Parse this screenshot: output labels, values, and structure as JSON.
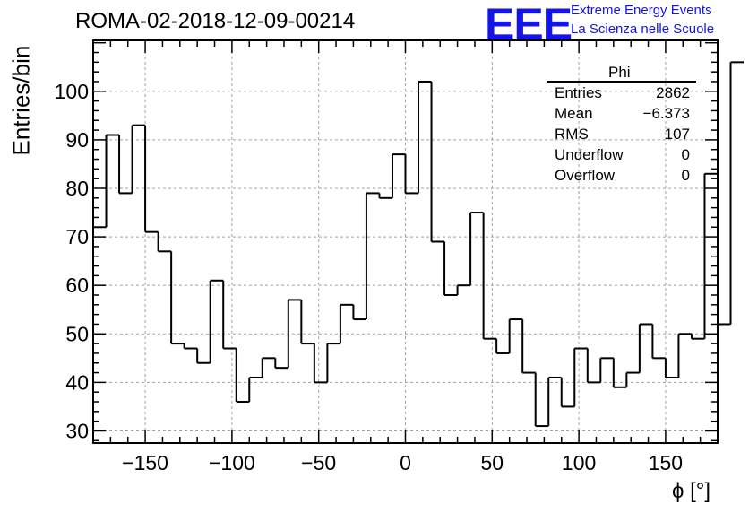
{
  "header": {
    "run_title": "ROMA-02-2018-12-09-00214"
  },
  "logo": {
    "mark": "EEE",
    "line1": "Extreme Energy Events",
    "line2": "La Scienza nelle Scuole",
    "color": "#1414e6"
  },
  "stats_box": {
    "title": "Phi",
    "rows": [
      {
        "label": "Entries",
        "value": "2862"
      },
      {
        "label": "Mean",
        "value": "−6.373"
      },
      {
        "label": "RMS",
        "value": "107"
      },
      {
        "label": "Underflow",
        "value": "0"
      },
      {
        "label": "Overflow",
        "value": "0"
      }
    ]
  },
  "chart_data": {
    "type": "bar",
    "style": "step-histogram",
    "xlabel": "ϕ [°]",
    "ylabel": "Entries/bin",
    "xlim": [
      -180,
      180
    ],
    "ylim": [
      27.5,
      110.5
    ],
    "grid": true,
    "x_ticks": [
      -150,
      -100,
      -50,
      0,
      50,
      100,
      150
    ],
    "x_tick_labels": [
      "−150",
      "−100",
      "−50",
      "0",
      "50",
      "100",
      "150"
    ],
    "y_ticks": [
      30,
      40,
      50,
      60,
      70,
      80,
      90,
      100
    ],
    "y_tick_labels": [
      "30",
      "40",
      "50",
      "60",
      "70",
      "80",
      "90",
      "100"
    ],
    "bin_width": 7.5,
    "bin_edges_start": -180,
    "values": [
      72,
      91,
      79,
      93,
      71,
      67,
      48,
      47,
      44,
      61,
      47,
      36,
      41,
      45,
      43,
      57,
      48,
      40,
      48,
      56,
      53,
      79,
      78,
      87,
      79,
      102,
      69,
      58,
      60,
      75,
      49,
      46,
      53,
      42,
      31,
      41,
      35,
      47,
      40,
      45,
      39,
      42,
      52,
      45,
      41,
      50,
      49,
      83,
      52,
      106
    ],
    "line_color": "#000000"
  }
}
